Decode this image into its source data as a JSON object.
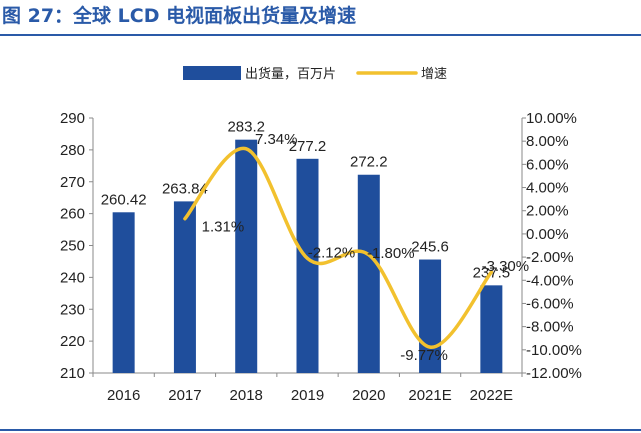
{
  "figure": {
    "title": "图 27：全球 LCD 电视面板出货量及增速"
  },
  "colors": {
    "bar": "#1f4e9c",
    "line": "#f2c12e",
    "title": "#2a5aa8",
    "axis": "#8a8a8a"
  },
  "chart_data": {
    "type": "bar",
    "categories": [
      "2016",
      "2017",
      "2018",
      "2019",
      "2020",
      "2021E",
      "2022E"
    ],
    "series": [
      {
        "name": "出货量，百万片",
        "type": "bar",
        "axis": "left",
        "values": [
          260.42,
          263.84,
          283.2,
          277.2,
          272.2,
          245.6,
          237.5
        ],
        "labels": [
          "260.42",
          "263.84",
          "283.2",
          "277.2",
          "272.2",
          "245.6",
          "237.5"
        ]
      },
      {
        "name": "增速",
        "type": "line",
        "axis": "right",
        "values": [
          null,
          1.31,
          7.34,
          -2.12,
          -1.8,
          -9.77,
          -3.3
        ],
        "labels": [
          "",
          "1.31%",
          "7.34%",
          "-2.12%",
          "-1.80%",
          "-9.77%",
          "-3.30%"
        ]
      }
    ],
    "ylim_left": [
      210,
      290
    ],
    "yticks_left": [
      "210",
      "220",
      "230",
      "240",
      "250",
      "260",
      "270",
      "280",
      "290"
    ],
    "ylim_right": [
      -12,
      10
    ],
    "yticks_right": [
      "-12.00%",
      "-10.00%",
      "-8.00%",
      "-6.00%",
      "-4.00%",
      "-2.00%",
      "0.00%",
      "2.00%",
      "4.00%",
      "6.00%",
      "8.00%",
      "10.00%"
    ],
    "legend_position": "top",
    "grid": false
  }
}
